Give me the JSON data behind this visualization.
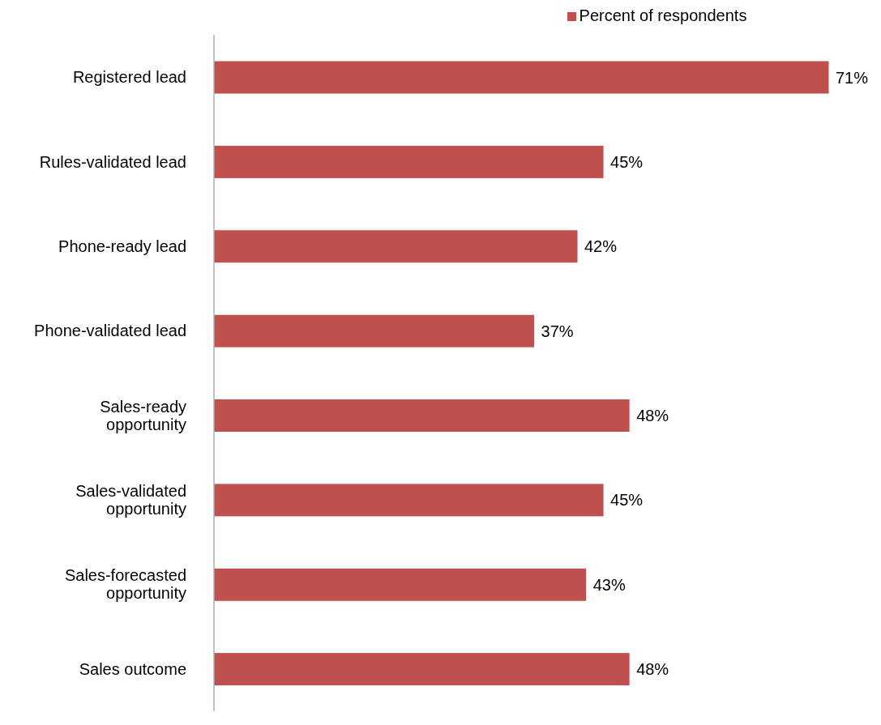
{
  "chart_data": {
    "type": "bar",
    "orientation": "horizontal",
    "categories": [
      "Registered lead",
      "Rules-validated lead",
      "Phone-ready lead",
      "Phone-validated lead",
      "Sales-ready opportunity",
      "Sales-validated opportunity",
      "Sales-forecasted opportunity",
      "Sales outcome"
    ],
    "series": [
      {
        "name": "Percent of respondents",
        "color": "#c0504d",
        "values": [
          71,
          45,
          42,
          37,
          48,
          45,
          43,
          48
        ],
        "value_labels": [
          "71%",
          "45%",
          "42%",
          "37%",
          "48%",
          "45%",
          "43%",
          "48%"
        ]
      }
    ],
    "legend": "top",
    "grid": false
  }
}
